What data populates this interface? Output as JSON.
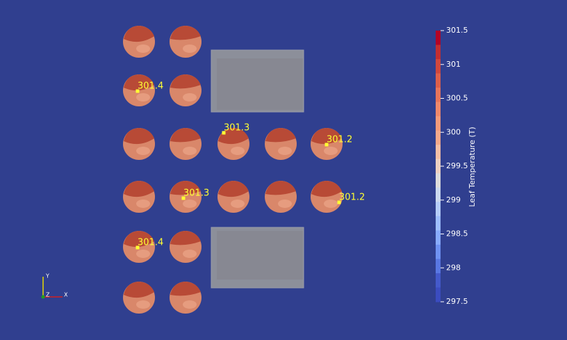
{
  "colorbar": {
    "title": "Leaf Temperature (T)",
    "range": [
      297.5,
      301.5
    ],
    "ticks": [
      301.5,
      301,
      300.5,
      300,
      299.5,
      299,
      298.5,
      298,
      297.5
    ],
    "colors": [
      "#b40426",
      "#c32e31",
      "#d0473d",
      "#dd5f4b",
      "#e7745b",
      "#ef886b",
      "#f49a7b",
      "#f6a98b",
      "#f6bfa6",
      "#edd1c2",
      "#dddcdc",
      "#cad8ef",
      "#b5cdfa",
      "#9ebeff",
      "#88abfd",
      "#6f92f3",
      "#5977e3",
      "#445acc",
      "#3b4cc0"
    ]
  },
  "probes": [
    {
      "label": 301.4
    },
    {
      "label": 301.3
    },
    {
      "label": 301.2
    },
    {
      "label": 301.3
    },
    {
      "label": 301.2
    },
    {
      "label": 301.4
    }
  ],
  "axes": {
    "x": "X",
    "y": "Y",
    "z": "Z"
  }
}
